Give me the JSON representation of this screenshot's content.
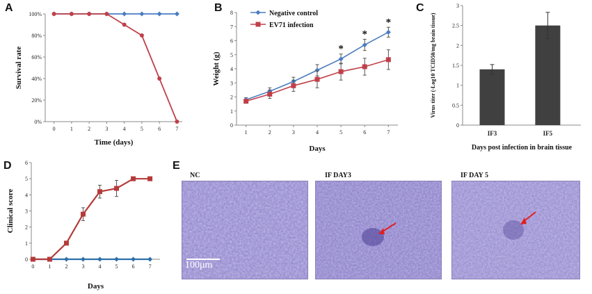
{
  "panels": {
    "A": "A",
    "B": "B",
    "C": "C",
    "D": "D",
    "E": "E"
  },
  "chart_data": [
    {
      "id": "A",
      "type": "line",
      "xlabel": "Time (days)",
      "ylabel": "Survival rate",
      "x": [
        0,
        1,
        2,
        3,
        4,
        5,
        6,
        7
      ],
      "ylim": [
        0,
        100
      ],
      "yticks": [
        "0%",
        "20%",
        "40%",
        "60%",
        "80%",
        "100%"
      ],
      "series": [
        {
          "name": "Negative control",
          "color": "#4a7cc0",
          "marker": "diamond",
          "values": [
            100,
            100,
            100,
            100,
            100,
            100,
            100,
            100
          ]
        },
        {
          "name": "EV71 infection",
          "color": "#c0404a",
          "marker": "circle",
          "values": [
            100,
            100,
            100,
            100,
            90,
            80,
            40,
            0
          ]
        }
      ]
    },
    {
      "id": "B",
      "type": "line",
      "xlabel": "Days",
      "ylabel": "Weight (g)",
      "x": [
        1,
        2,
        3,
        4,
        5,
        6,
        7
      ],
      "ylim": [
        0,
        8
      ],
      "yticks": [
        "0",
        "1",
        "2",
        "3",
        "4",
        "5",
        "6",
        "7",
        "8"
      ],
      "legend": [
        "Negative control",
        "EV71 infection"
      ],
      "significance": "*",
      "significant_x": [
        5,
        6,
        7
      ],
      "series": [
        {
          "name": "Negative control",
          "color": "#4a7cc0",
          "marker": "diamond",
          "values": [
            1.8,
            2.4,
            3.1,
            3.9,
            4.7,
            5.7,
            6.6
          ],
          "errors": [
            0.15,
            0.25,
            0.3,
            0.4,
            0.35,
            0.4,
            0.35
          ]
        },
        {
          "name": "EV71 infection",
          "color": "#c0404a",
          "marker": "square",
          "values": [
            1.7,
            2.2,
            2.8,
            3.25,
            3.8,
            4.15,
            4.65
          ],
          "errors": [
            0.15,
            0.3,
            0.4,
            0.6,
            0.6,
            0.6,
            0.7
          ]
        }
      ]
    },
    {
      "id": "C",
      "type": "bar",
      "xlabel": "Days post infection  in brain  tissue",
      "ylabel": "Virus titer (-Log10 TCID50/mg  brain  tissue)",
      "categories": [
        "IF3",
        "IF5"
      ],
      "values": [
        1.4,
        2.5
      ],
      "errors": [
        0.12,
        0.33
      ],
      "ylim": [
        0,
        3
      ],
      "yticks": [
        "0",
        "0.5",
        "1",
        "1.5",
        "2",
        "2.5",
        "3"
      ],
      "color": "#404040"
    },
    {
      "id": "D",
      "type": "line",
      "xlabel": "Days",
      "ylabel": "Clinical score",
      "x": [
        0,
        1,
        2,
        3,
        4,
        5,
        6,
        7
      ],
      "ylim": [
        0,
        6
      ],
      "yticks": [
        "0",
        "1",
        "2",
        "3",
        "4",
        "5",
        "6"
      ],
      "series": [
        {
          "name": "Negative control",
          "color": "#2e6fa8",
          "marker": "diamond",
          "values": [
            0,
            0,
            0,
            0,
            0,
            0,
            0,
            0
          ],
          "errors": [
            0,
            0,
            0,
            0,
            0,
            0,
            0,
            0
          ]
        },
        {
          "name": "EV71 infection",
          "color": "#b53a3a",
          "marker": "square",
          "values": [
            0,
            0,
            1,
            2.8,
            4.2,
            4.4,
            5,
            5
          ],
          "errors": [
            0,
            0,
            0,
            0.4,
            0.4,
            0.5,
            0,
            0
          ]
        }
      ]
    }
  ],
  "micrographs": {
    "labels": [
      "NC",
      "IF DAY3",
      "IF DAY 5"
    ],
    "scale_bar": "100μm"
  }
}
